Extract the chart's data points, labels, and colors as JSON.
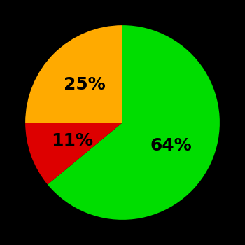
{
  "slices": [
    64,
    11,
    25
  ],
  "colors": [
    "#00dd00",
    "#dd0000",
    "#ffaa00"
  ],
  "labels": [
    "64%",
    "11%",
    "25%"
  ],
  "background_color": "#000000",
  "text_color": "#000000",
  "startangle": 90,
  "counterclock": false,
  "figsize": [
    3.5,
    3.5
  ],
  "dpi": 100,
  "font_size": 18,
  "font_weight": "bold",
  "label_r": 0.55
}
